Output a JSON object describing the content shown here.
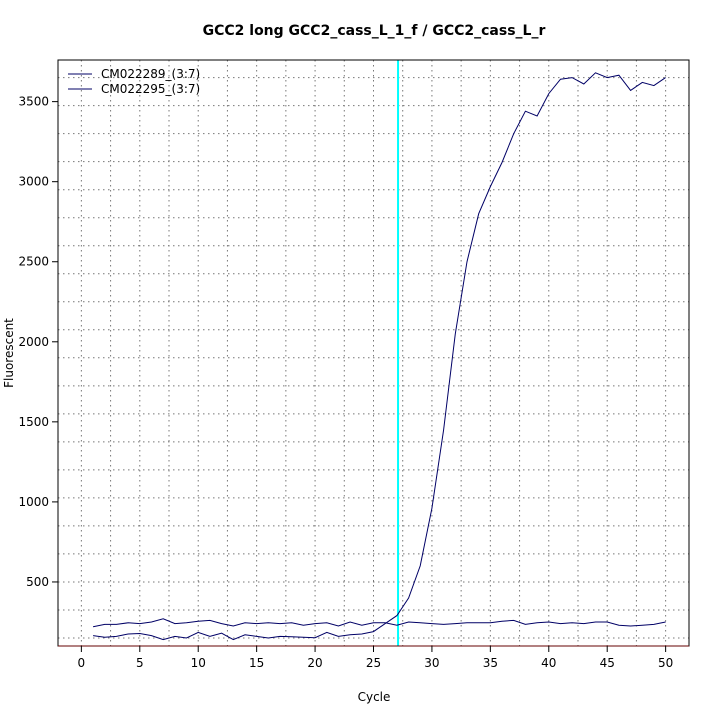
{
  "chart_data": {
    "type": "line",
    "title": "GCC2 long GCC2_cass_L_1_f / GCC2_cass_L_r",
    "xlabel": "Cycle",
    "ylabel": "Fluorescent",
    "xlim": [
      -2,
      52
    ],
    "ylim": [
      100,
      3760
    ],
    "x_ticks": [
      0,
      5,
      10,
      15,
      20,
      25,
      30,
      35,
      40,
      45,
      50
    ],
    "y_ticks": [
      500,
      1000,
      1500,
      2000,
      2500,
      3000,
      3500
    ],
    "grid": true,
    "legend_position": "top-left",
    "threshold_cycle": 27.1,
    "colors": {
      "series": "#000066",
      "threshold": "#00ffff",
      "axis": "#660000",
      "grid": "#777777"
    },
    "x": [
      1,
      2,
      3,
      4,
      5,
      6,
      7,
      8,
      9,
      10,
      11,
      12,
      13,
      14,
      15,
      16,
      17,
      18,
      19,
      20,
      21,
      22,
      23,
      24,
      25,
      26,
      27,
      28,
      29,
      30,
      31,
      32,
      33,
      34,
      35,
      36,
      37,
      38,
      39,
      40,
      41,
      42,
      43,
      44,
      45,
      46,
      47,
      48,
      49,
      50
    ],
    "series": [
      {
        "name": "CM022289_(3:7)",
        "values": [
          165,
          155,
          160,
          175,
          178,
          165,
          140,
          160,
          150,
          185,
          160,
          180,
          140,
          170,
          160,
          150,
          160,
          158,
          155,
          152,
          185,
          160,
          170,
          175,
          190,
          240,
          290,
          400,
          600,
          960,
          1450,
          2050,
          2500,
          2800,
          2970,
          3120,
          3300,
          3440,
          3410,
          3550,
          3640,
          3650,
          3610,
          3680,
          3650,
          3665,
          3570,
          3620,
          3600,
          3650
        ]
      },
      {
        "name": "CM022295_(3:7)",
        "values": [
          220,
          235,
          235,
          245,
          240,
          250,
          270,
          240,
          245,
          255,
          260,
          240,
          225,
          245,
          240,
          245,
          240,
          245,
          230,
          240,
          245,
          225,
          250,
          230,
          245,
          245,
          230,
          250,
          245,
          240,
          235,
          240,
          245,
          245,
          245,
          255,
          260,
          235,
          245,
          250,
          240,
          245,
          240,
          250,
          250,
          230,
          225,
          230,
          235,
          250
        ]
      }
    ]
  }
}
